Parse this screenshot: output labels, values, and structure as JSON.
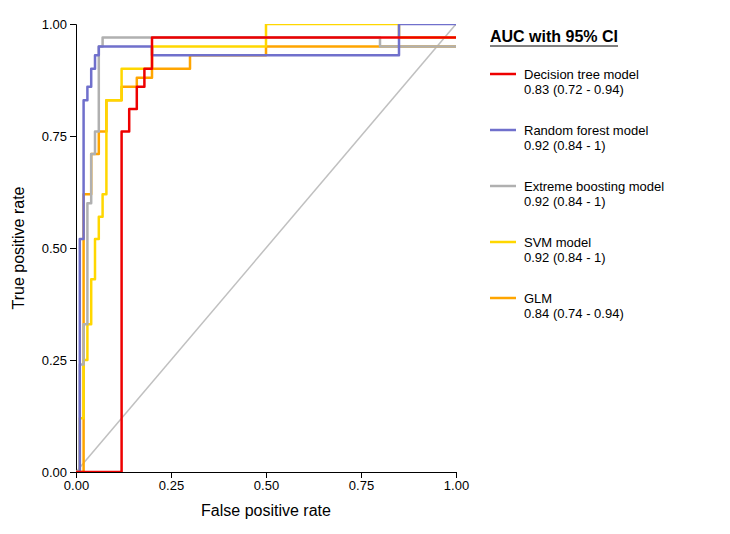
{
  "chart_data": {
    "type": "line",
    "title": "AUC with 95% CI",
    "x_label": "False positive rate",
    "y_label": "True positive rate",
    "xlim": [
      0.0,
      1.0
    ],
    "ylim": [
      0.0,
      1.0
    ],
    "xticks": [
      {
        "value": 0.0,
        "label": "0.00"
      },
      {
        "value": 0.25,
        "label": "0.25"
      },
      {
        "value": 0.5,
        "label": "0.50"
      },
      {
        "value": 0.75,
        "label": "0.75"
      },
      {
        "value": 1.0,
        "label": "1.00"
      }
    ],
    "yticks": [
      {
        "value": 0.0,
        "label": "0.00"
      },
      {
        "value": 0.25,
        "label": "0.25"
      },
      {
        "value": 0.5,
        "label": "0.50"
      },
      {
        "value": 0.75,
        "label": "0.75"
      },
      {
        "value": 1.0,
        "label": "1.00"
      }
    ],
    "grid": false,
    "legend": "right",
    "series": [
      {
        "name": "Decision tree model\n0.83 (0.72 - 0.94)",
        "color": "#EE0000",
        "x": [
          0.0,
          0.12,
          0.12,
          0.14,
          0.14,
          0.16,
          0.16,
          0.18,
          0.18,
          0.2,
          0.2,
          1.0
        ],
        "values": [
          0.0,
          0.0,
          0.76,
          0.76,
          0.81,
          0.81,
          0.86,
          0.86,
          0.9,
          0.9,
          0.97,
          0.97
        ]
      },
      {
        "name": "Random forest model\n0.92 (0.84 - 1)",
        "color": "#7070CC",
        "x": [
          0.0,
          0.01,
          0.01,
          0.02,
          0.02,
          0.03,
          0.03,
          0.04,
          0.04,
          0.05,
          0.05,
          0.06,
          0.06,
          0.2,
          0.2,
          0.85,
          0.85,
          1.0
        ],
        "values": [
          0.0,
          0.0,
          0.52,
          0.52,
          0.83,
          0.83,
          0.86,
          0.86,
          0.9,
          0.9,
          0.93,
          0.93,
          0.95,
          0.95,
          0.93,
          0.93,
          1.0,
          1.0
        ]
      },
      {
        "name": "Extreme boosting model\n0.92 (0.84 - 1)",
        "color": "#B0B0B0",
        "x": [
          0.0,
          0.01,
          0.01,
          0.02,
          0.02,
          0.03,
          0.03,
          0.04,
          0.04,
          0.05,
          0.05,
          0.06,
          0.06,
          0.07,
          0.07,
          0.8,
          0.8,
          1.0
        ],
        "values": [
          0.0,
          0.0,
          0.24,
          0.24,
          0.33,
          0.33,
          0.6,
          0.6,
          0.71,
          0.71,
          0.76,
          0.76,
          0.95,
          0.95,
          0.97,
          0.97,
          0.95,
          0.95
        ]
      },
      {
        "name": "SVM model\n0.92 (0.84 - 1)",
        "color": "#FFD700",
        "x": [
          0.0,
          0.01,
          0.01,
          0.02,
          0.02,
          0.03,
          0.03,
          0.04,
          0.04,
          0.05,
          0.05,
          0.06,
          0.06,
          0.07,
          0.07,
          0.08,
          0.08,
          0.12,
          0.12,
          0.2,
          0.2,
          0.5,
          0.5,
          0.85,
          0.85,
          1.0
        ],
        "values": [
          0.0,
          0.0,
          0.12,
          0.12,
          0.25,
          0.25,
          0.33,
          0.33,
          0.43,
          0.43,
          0.52,
          0.52,
          0.57,
          0.57,
          0.62,
          0.62,
          0.83,
          0.83,
          0.9,
          0.9,
          0.95,
          0.95,
          1.0,
          1.0,
          0.97,
          0.97
        ]
      },
      {
        "name": "GLM\n0.84 (0.74 - 0.94)",
        "color": "#FFA500",
        "x": [
          0.0,
          0.02,
          0.02,
          0.04,
          0.04,
          0.06,
          0.06,
          0.08,
          0.08,
          0.12,
          0.12,
          0.16,
          0.16,
          0.2,
          0.2,
          0.3,
          0.3,
          0.5,
          0.5,
          1.0
        ],
        "values": [
          0.0,
          0.0,
          0.62,
          0.62,
          0.71,
          0.71,
          0.76,
          0.76,
          0.83,
          0.83,
          0.86,
          0.86,
          0.88,
          0.88,
          0.9,
          0.9,
          0.93,
          0.93,
          0.95,
          0.95
        ]
      },
      {
        "color": "#C0C0C0",
        "x": [
          0,
          1
        ],
        "values": [
          0,
          1
        ]
      }
    ]
  }
}
